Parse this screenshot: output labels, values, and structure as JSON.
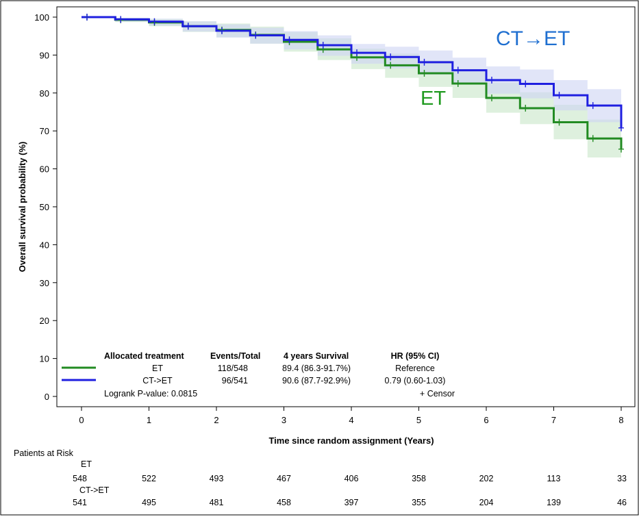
{
  "chart_data": {
    "type": "line",
    "xlabel": "Time since random assignment (Years)",
    "ylabel": "Overall survival probability (%)",
    "xlim": [
      0,
      8
    ],
    "ylim": [
      0,
      100
    ],
    "x_ticks": [
      "0",
      "1",
      "2",
      "3",
      "4",
      "5",
      "6",
      "7",
      "8"
    ],
    "y_ticks": [
      "0",
      "10",
      "20",
      "30",
      "40",
      "50",
      "60",
      "70",
      "80",
      "90",
      "100"
    ],
    "grid": false,
    "legend_position": "bottom-left",
    "series": [
      {
        "name": "ET",
        "color": "#228b22",
        "band_color": "#c8e6c8",
        "x": [
          0,
          0.5,
          1,
          1.5,
          2,
          2.5,
          3,
          3.5,
          4,
          4.5,
          5,
          5.5,
          6,
          6.5,
          7,
          7.5,
          8
        ],
        "y": [
          100,
          99.3,
          98.6,
          97.6,
          96.6,
          95.3,
          93.5,
          91.5,
          89.4,
          87.3,
          85.2,
          82.5,
          78.7,
          76.0,
          72.3,
          68.0,
          65.2
        ],
        "ci_lower": [
          100,
          98.7,
          97.6,
          96.1,
          94.7,
          93.0,
          90.9,
          88.7,
          86.3,
          84.0,
          81.6,
          78.7,
          74.8,
          71.8,
          67.8,
          63.0,
          58.5
        ],
        "ci_upper": [
          100,
          99.8,
          99.5,
          98.9,
          98.3,
          97.5,
          96.1,
          94.4,
          91.7,
          90.4,
          88.6,
          86.3,
          82.7,
          80.2,
          76.9,
          73.0,
          71.0
        ]
      },
      {
        "name": "CT→ET",
        "color": "#1f1fe0",
        "band_color": "#cdd3f3",
        "x": [
          0,
          0.5,
          1,
          1.5,
          2,
          2.5,
          3,
          3.5,
          4,
          4.5,
          5,
          5.5,
          6,
          6.5,
          7,
          7.5,
          8
        ],
        "y": [
          100,
          99.4,
          98.8,
          97.6,
          96.4,
          95.2,
          94.0,
          92.6,
          90.6,
          89.5,
          88.1,
          86.0,
          83.4,
          82.4,
          79.4,
          76.7,
          70.8
        ],
        "ci_lower": [
          100,
          98.8,
          97.8,
          96.2,
          94.6,
          93.0,
          91.5,
          89.8,
          87.7,
          86.5,
          84.9,
          82.6,
          79.8,
          78.6,
          75.4,
          72.3,
          65.0
        ],
        "ci_upper": [
          100,
          99.8,
          99.6,
          98.9,
          98.1,
          97.2,
          96.3,
          95.2,
          92.9,
          92.2,
          91.2,
          89.3,
          87.0,
          86.2,
          83.4,
          81.0,
          76.5
        ]
      }
    ],
    "annotations": [
      {
        "text": "CT→ET",
        "color": "#1f6fd0"
      },
      {
        "text": "ET",
        "color": "#1f9a1f"
      }
    ],
    "legend_table": {
      "headers": [
        "Allocated treatment",
        "Events/Total",
        "4 years Survival",
        "HR (95% CI)"
      ],
      "rows": [
        {
          "treatment": "ET",
          "events": "118/548",
          "survival": "89.4 (86.3-91.7%)",
          "hr": "Reference"
        },
        {
          "treatment": "CT->ET",
          "events": "96/541",
          "survival": "90.6 (87.7-92.9%)",
          "hr": "0.79 (0.60-1.03)"
        }
      ],
      "logrank": "Logrank P-value: 0.0815",
      "censor": "+ Censor"
    },
    "at_risk": {
      "title": "Patients at Risk",
      "groups": [
        {
          "label": "ET",
          "values": [
            "548",
            "522",
            "493",
            "467",
            "406",
            "358",
            "202",
            "113",
            "33"
          ]
        },
        {
          "label": "CT->ET",
          "values": [
            "541",
            "495",
            "481",
            "458",
            "397",
            "355",
            "204",
            "139",
            "46"
          ]
        }
      ]
    }
  }
}
